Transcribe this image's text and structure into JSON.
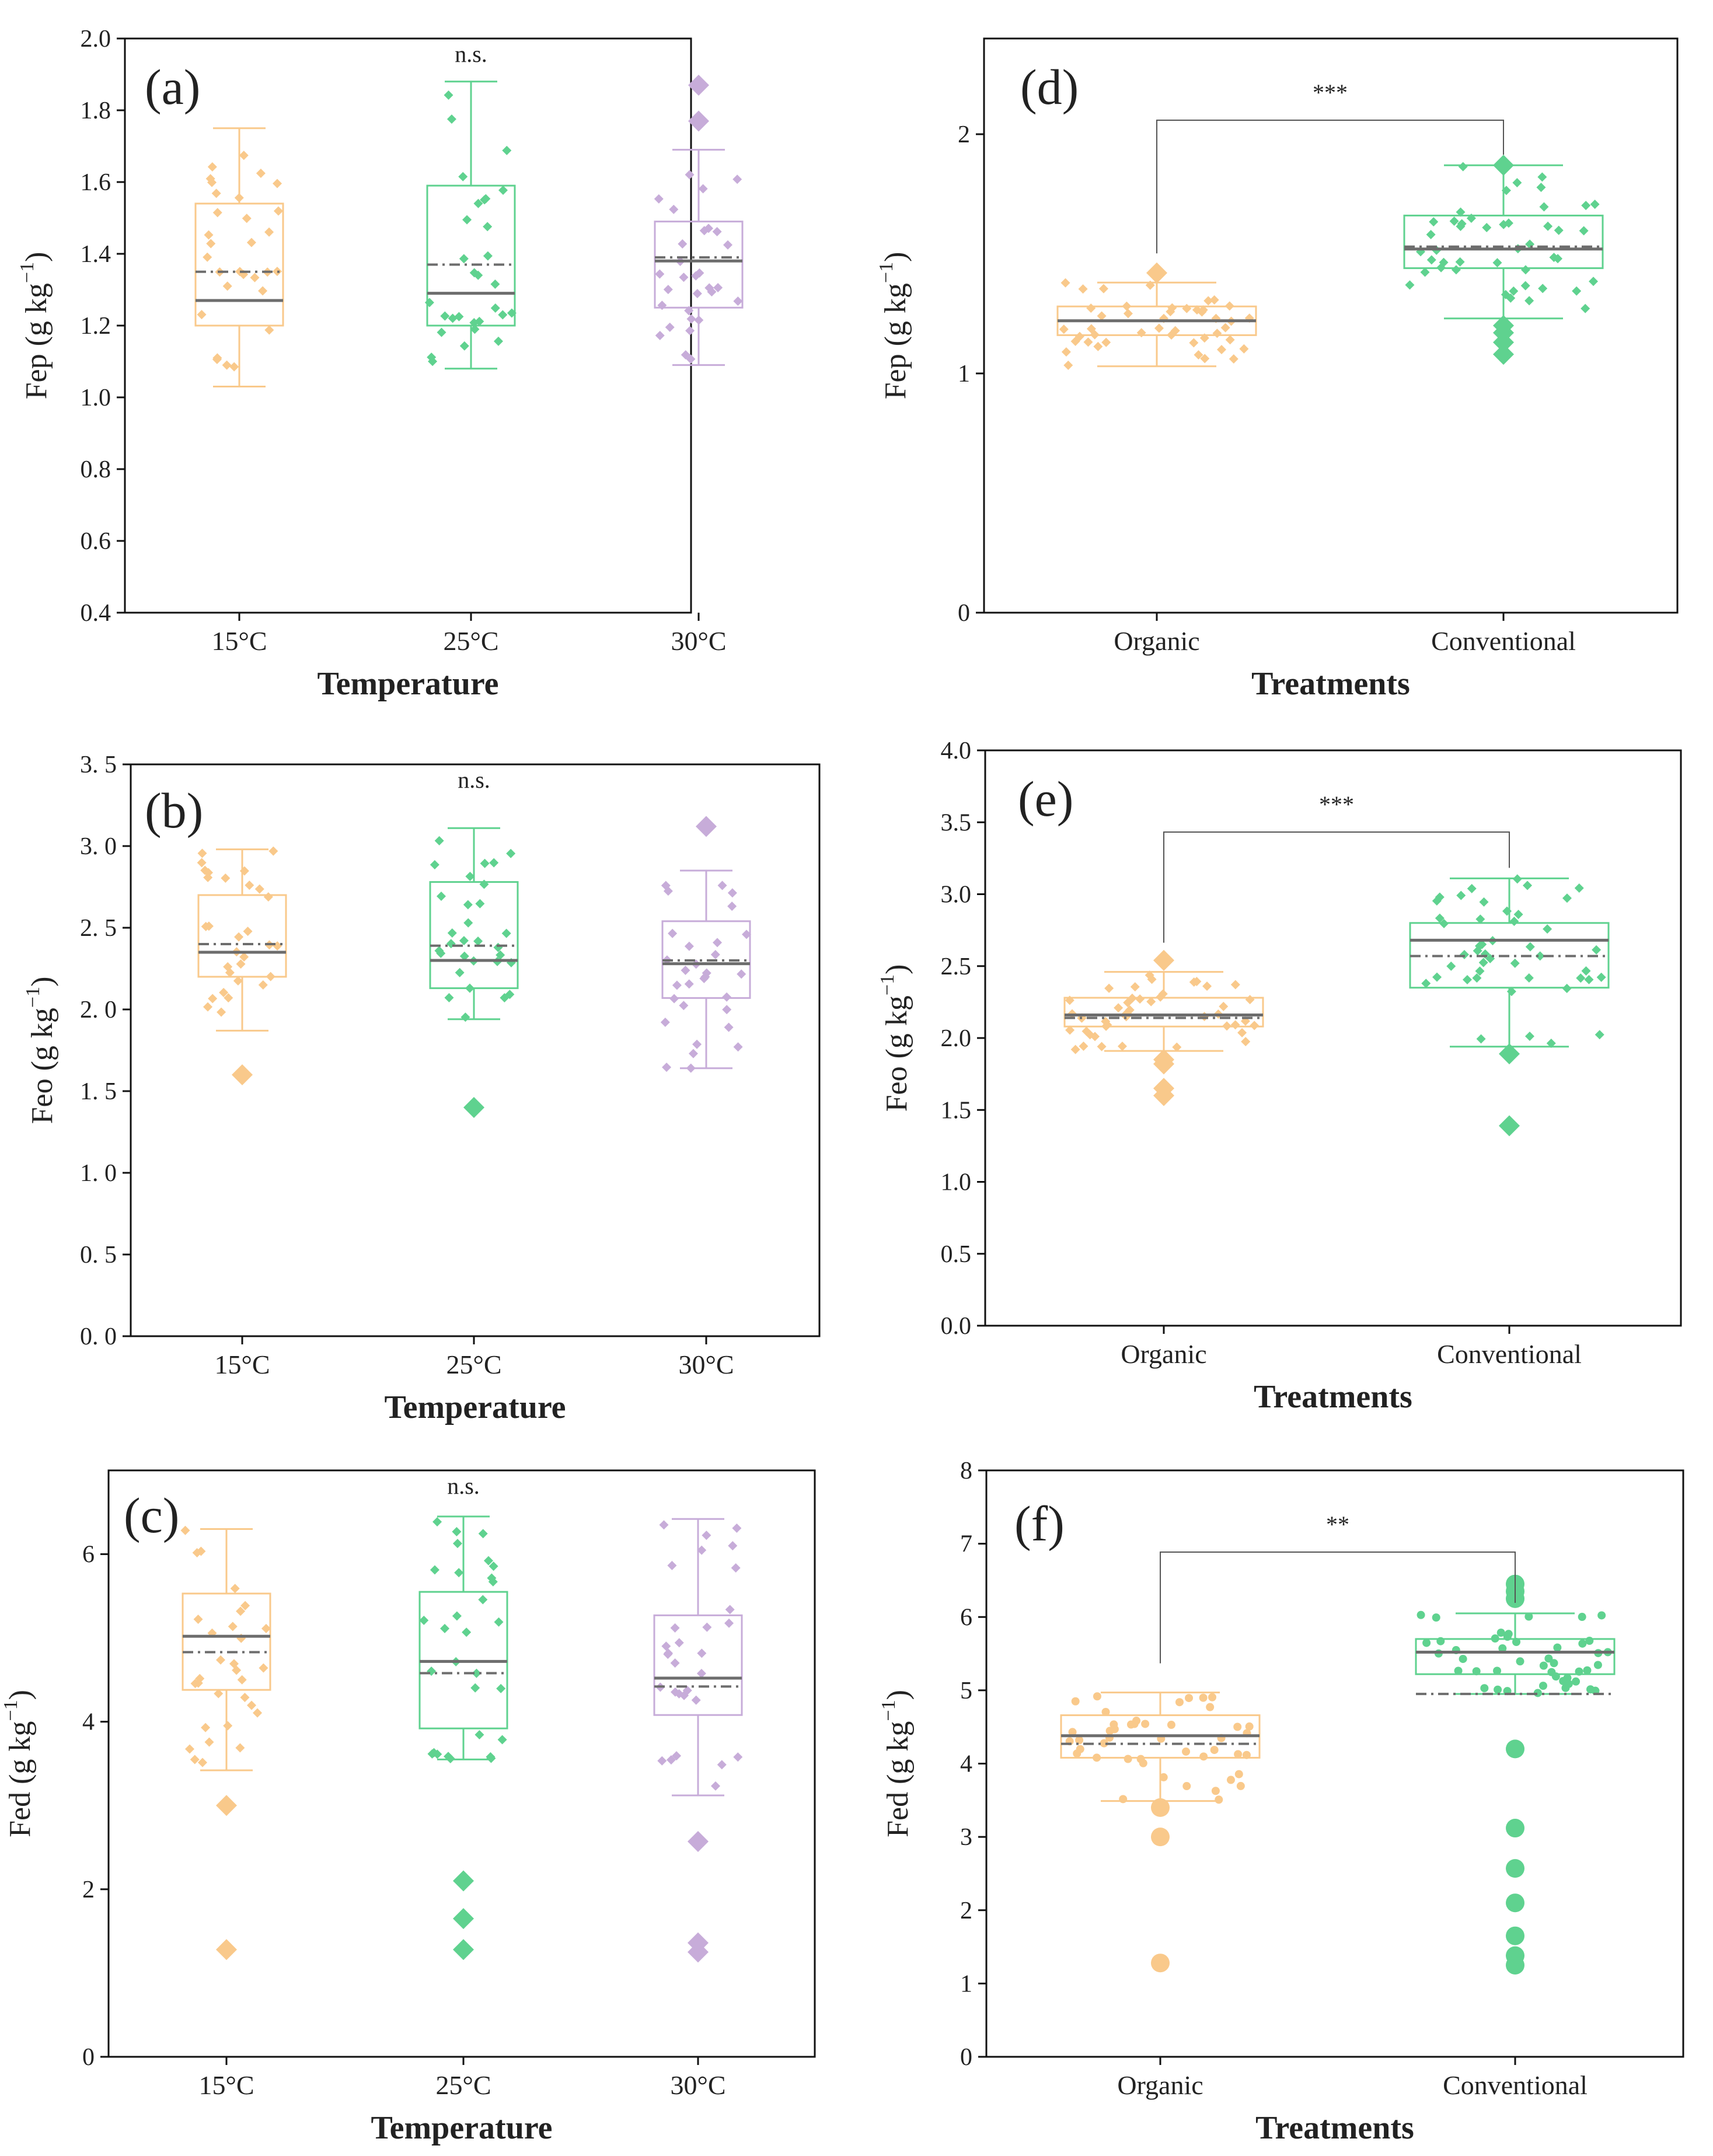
{
  "figure": {
    "colors": {
      "orange": "#F9C98B",
      "green": "#5FD28F",
      "purple": "#C7ACD9",
      "median": "#6d6d6d",
      "frame": "#111111"
    },
    "box_legend_note": ""
  },
  "chart_data": [
    {
      "type": "box",
      "panel_label": "(a)",
      "ylabel": "Fep (g kg",
      "ylabel_sup": "−1",
      "ylabel_close": ")",
      "xlabel": "Temperature",
      "ylim": [
        0.4,
        2.0
      ],
      "yticks": [
        "0.4",
        "0.6",
        "0.8",
        "1.0",
        "1.2",
        "1.4",
        "1.6",
        "1.8",
        "2.0"
      ],
      "annotation": "n.s.",
      "categories": [
        "15°C",
        "25°C",
        "30°C"
      ],
      "boxes": [
        {
          "name": "15°C",
          "color": "orange",
          "marker": "diamond",
          "q1": 1.2,
          "median": 1.27,
          "q3": 1.54,
          "mean": 1.35,
          "whisker_low": 1.03,
          "whisker_high": 1.75,
          "outliers": []
        },
        {
          "name": "25°C",
          "color": "green",
          "marker": "diamond",
          "q1": 1.2,
          "median": 1.29,
          "q3": 1.59,
          "mean": 1.37,
          "whisker_low": 1.08,
          "whisker_high": 1.88,
          "outliers": []
        },
        {
          "name": "30°C",
          "color": "purple",
          "marker": "diamond",
          "q1": 1.25,
          "median": 1.38,
          "q3": 1.49,
          "mean": 1.39,
          "whisker_low": 1.09,
          "whisker_high": 1.69,
          "outliers": [
            1.87,
            1.77
          ]
        }
      ]
    },
    {
      "type": "box",
      "panel_label": "(b)",
      "ylabel": "Feo (g kg",
      "ylabel_sup": "−1",
      "ylabel_close": ")",
      "xlabel": "Temperature",
      "ylim": [
        0.0,
        3.5
      ],
      "yticks": [
        "0. 0",
        "0. 5",
        "1. 0",
        "1. 5",
        "2. 0",
        "2. 5",
        "3. 0",
        "3. 5"
      ],
      "annotation": "n.s.",
      "categories": [
        "15°C",
        "25°C",
        "30°C"
      ],
      "boxes": [
        {
          "name": "15°C",
          "color": "orange",
          "marker": "diamond",
          "q1": 2.2,
          "median": 2.35,
          "q3": 2.7,
          "mean": 2.4,
          "whisker_low": 1.87,
          "whisker_high": 2.98,
          "outliers": [
            1.6
          ]
        },
        {
          "name": "25°C",
          "color": "green",
          "marker": "diamond",
          "q1": 2.13,
          "median": 2.3,
          "q3": 2.78,
          "mean": 2.39,
          "whisker_low": 1.94,
          "whisker_high": 3.11,
          "outliers": [
            1.4
          ]
        },
        {
          "name": "30°C",
          "color": "purple",
          "marker": "diamond",
          "q1": 2.07,
          "median": 2.28,
          "q3": 2.54,
          "mean": 2.3,
          "whisker_low": 1.64,
          "whisker_high": 2.85,
          "outliers": [
            3.12
          ]
        }
      ]
    },
    {
      "type": "box",
      "panel_label": "(c)",
      "ylabel": "Fed (g kg",
      "ylabel_sup": "−1",
      "ylabel_close": ")",
      "xlabel": "Temperature",
      "ylim": [
        0,
        7
      ],
      "yticks": [
        "0",
        "2",
        "4",
        "6"
      ],
      "ytick_values": [
        0,
        2,
        4,
        6
      ],
      "annotation": "n.s.",
      "categories": [
        "15°C",
        "25°C",
        "30°C"
      ],
      "boxes": [
        {
          "name": "15°C",
          "color": "orange",
          "marker": "diamond",
          "q1": 4.38,
          "median": 5.02,
          "q3": 5.53,
          "mean": 4.83,
          "whisker_low": 3.42,
          "whisker_high": 6.3,
          "outliers": [
            3.0,
            1.28
          ]
        },
        {
          "name": "25°C",
          "color": "green",
          "marker": "diamond",
          "q1": 3.92,
          "median": 4.72,
          "q3": 5.55,
          "mean": 4.58,
          "whisker_low": 3.55,
          "whisker_high": 6.45,
          "outliers": [
            2.1,
            1.65,
            1.28
          ]
        },
        {
          "name": "30°C",
          "color": "purple",
          "marker": "diamond",
          "q1": 4.08,
          "median": 4.52,
          "q3": 5.27,
          "mean": 4.42,
          "whisker_low": 3.12,
          "whisker_high": 6.42,
          "outliers": [
            2.57,
            1.36,
            1.25
          ]
        }
      ]
    },
    {
      "type": "box",
      "panel_label": "(d)",
      "ylabel": "Fep (g kg",
      "ylabel_sup": "−1",
      "ylabel_close": ")",
      "xlabel": "Treatments",
      "ylim": [
        0,
        2.4
      ],
      "yticks": [
        "0",
        "1",
        "2"
      ],
      "ytick_values": [
        0,
        1,
        2
      ],
      "annotation": "***",
      "categories": [
        "Organic",
        "Conventional"
      ],
      "boxes": [
        {
          "name": "Organic",
          "color": "orange",
          "marker": "diamond",
          "q1": 1.16,
          "median": 1.22,
          "q3": 1.28,
          "mean": 1.22,
          "whisker_low": 1.03,
          "whisker_high": 1.38,
          "outliers": [
            1.42
          ]
        },
        {
          "name": "Conventional",
          "color": "green",
          "marker": "diamond",
          "q1": 1.44,
          "median": 1.52,
          "q3": 1.66,
          "mean": 1.53,
          "whisker_low": 1.23,
          "whisker_high": 1.87,
          "outliers": [
            1.87,
            1.2,
            1.17,
            1.13,
            1.08
          ]
        }
      ]
    },
    {
      "type": "box",
      "panel_label": "(e)",
      "ylabel": "Feo (g kg",
      "ylabel_sup": "−1",
      "ylabel_close": ")",
      "xlabel": "Treatments",
      "ylim": [
        0.0,
        4.0
      ],
      "yticks": [
        "0.0",
        "0.5",
        "1.0",
        "1.5",
        "2.0",
        "2.5",
        "3.0",
        "3.5",
        "4.0"
      ],
      "annotation": "***",
      "categories": [
        "Organic",
        "Conventional"
      ],
      "boxes": [
        {
          "name": "Organic",
          "color": "orange",
          "marker": "diamond",
          "q1": 2.08,
          "median": 2.16,
          "q3": 2.28,
          "mean": 2.14,
          "whisker_low": 1.91,
          "whisker_high": 2.46,
          "outliers": [
            2.54,
            1.85,
            1.82,
            1.65,
            1.6
          ]
        },
        {
          "name": "Conventional",
          "color": "green",
          "marker": "diamond",
          "q1": 2.35,
          "median": 2.68,
          "q3": 2.8,
          "mean": 2.57,
          "whisker_low": 1.94,
          "whisker_high": 3.11,
          "outliers": [
            1.89,
            1.39
          ]
        }
      ]
    },
    {
      "type": "box",
      "panel_label": "(f)",
      "ylabel": "Fed (g kg",
      "ylabel_sup": "−1",
      "ylabel_close": ")",
      "xlabel": "Treatments",
      "ylim": [
        0,
        8
      ],
      "yticks": [
        "0",
        "1",
        "2",
        "3",
        "4",
        "5",
        "6",
        "7",
        "8"
      ],
      "annotation": "**",
      "categories": [
        "Organic",
        "Conventional"
      ],
      "boxes": [
        {
          "name": "Organic",
          "color": "orange",
          "marker": "circle",
          "q1": 4.08,
          "median": 4.38,
          "q3": 4.66,
          "mean": 4.27,
          "whisker_low": 3.49,
          "whisker_high": 4.97,
          "outliers": [
            3.4,
            3.0,
            1.28
          ]
        },
        {
          "name": "Conventional",
          "color": "green",
          "marker": "circle",
          "q1": 5.22,
          "median": 5.52,
          "q3": 5.7,
          "mean": 4.95,
          "whisker_low": 4.95,
          "whisker_high": 6.05,
          "outliers": [
            6.45,
            6.35,
            6.25,
            4.2,
            3.12,
            2.57,
            2.1,
            1.65,
            1.38,
            1.25
          ]
        }
      ]
    }
  ]
}
